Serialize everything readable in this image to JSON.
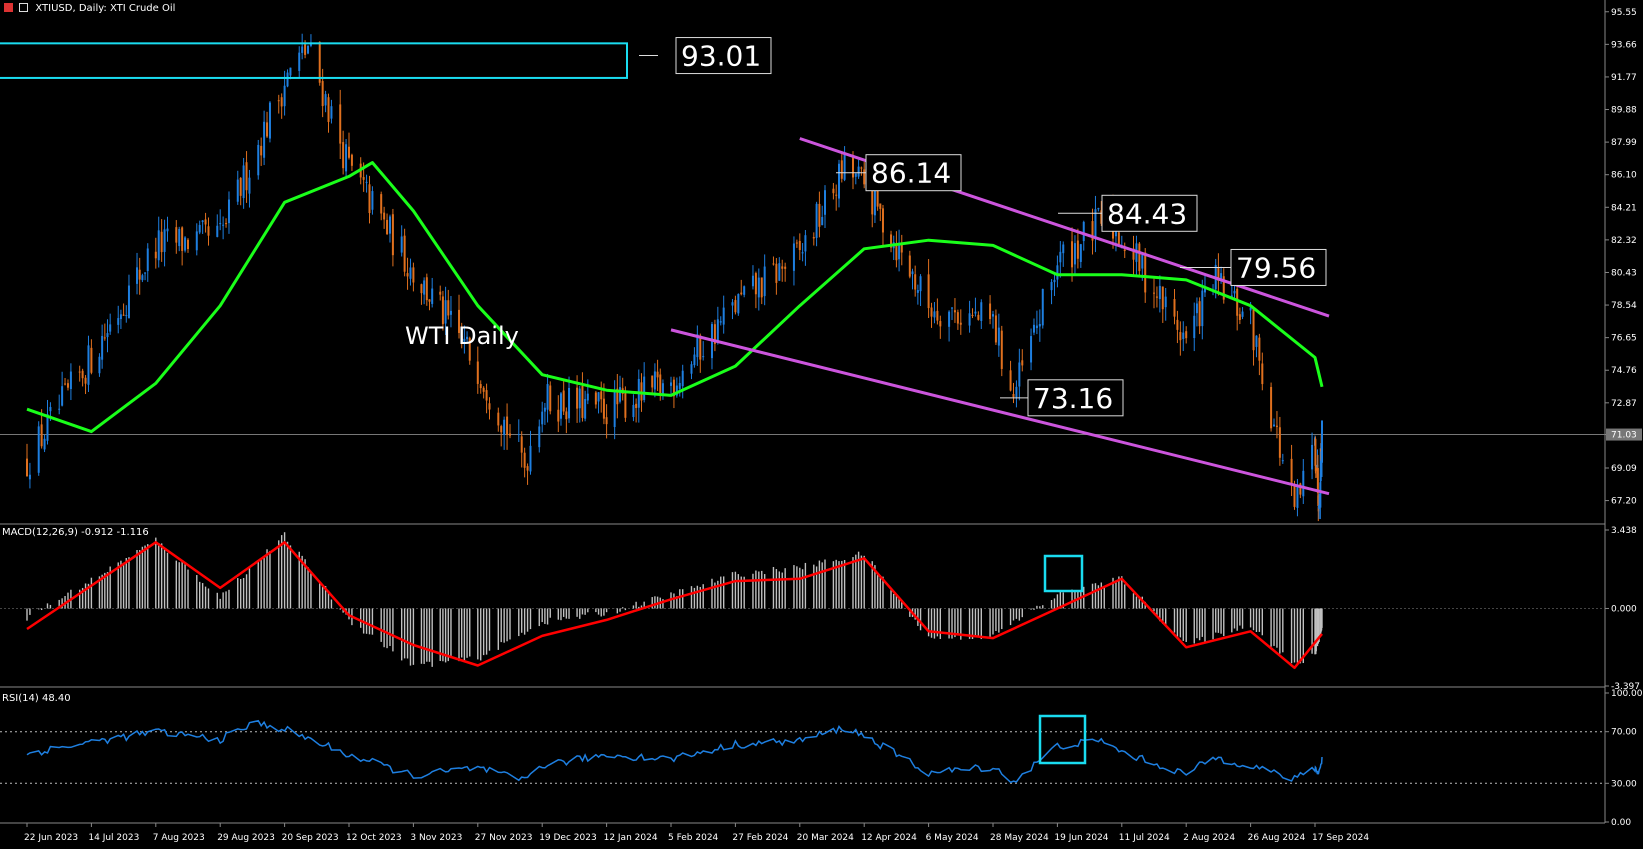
{
  "header": {
    "symbol_title": "XTIUSD, Daily:  XTI Crude Oil",
    "macd_label": "MACD(12,26,9) -0.912 -1.116",
    "rsi_label": "RSI(14) 48.40",
    "watermark": "WTI Daily"
  },
  "colors": {
    "background": "#000000",
    "bull_candle": "#1e7fe0",
    "bear_candle": "#e0701e",
    "moving_average": "#1aff1a",
    "channel": "#cc55dd",
    "callout_box": "#1adcf0",
    "macd_signal": "#ff0000",
    "macd_hist": "#c0c0c0",
    "rsi_line": "#1e7fe0",
    "grid": "#888888"
  },
  "price_axis": {
    "ticks": [
      "95.55",
      "93.66",
      "91.77",
      "89.88",
      "87.99",
      "86.10",
      "84.21",
      "82.32",
      "80.43",
      "78.54",
      "76.65",
      "74.76",
      "72.87",
      "71.03",
      "69.09",
      "67.20"
    ],
    "current_price": "71.03"
  },
  "macd_axis": {
    "ticks": [
      "3.438",
      "0.000",
      "-3.397"
    ]
  },
  "rsi_axis": {
    "ticks": [
      "100.00",
      "70.00",
      "30.00",
      "0.00"
    ]
  },
  "date_axis": {
    "labels": [
      "22 Jun 2023",
      "14 Jul 2023",
      "7 Aug 2023",
      "29 Aug 2023",
      "20 Sep 2023",
      "12 Oct 2023",
      "3 Nov 2023",
      "27 Nov 2023",
      "19 Dec 2023",
      "12 Jan 2024",
      "5 Feb 2024",
      "27 Feb 2024",
      "20 Mar 2024",
      "12 Apr 2024",
      "6 May 2024",
      "28 May 2024",
      "19 Jun 2024",
      "11 Jul 2024",
      "2 Aug 2024",
      "26 Aug 2024",
      "17 Sep 2024"
    ]
  },
  "callouts": [
    "93.01",
    "86.14",
    "84.43",
    "79.56",
    "73.16"
  ],
  "chart_data": {
    "type": "candlestick",
    "title": "XTIUSD, Daily:  XTI Crude Oil",
    "y_range": [
      65.9,
      96.0
    ],
    "price_path": [
      {
        "date": "22 Jun 2023",
        "close": 69.5
      },
      {
        "date": "14 Jul 2023",
        "close": 75.5
      },
      {
        "date": "7 Aug 2023",
        "close": 82.0
      },
      {
        "date": "29 Aug 2023",
        "close": 82.5
      },
      {
        "date": "20 Sep 2023",
        "close": 91.5
      },
      {
        "date": "28 Sep 2023",
        "close": 93.5
      },
      {
        "date": "12 Oct 2023",
        "close": 86.5
      },
      {
        "date": "3 Nov 2023",
        "close": 80.5
      },
      {
        "date": "27 Nov 2023",
        "close": 75.0
      },
      {
        "date": "13 Dec 2023",
        "close": 69.3
      },
      {
        "date": "19 Dec 2023",
        "close": 73.0
      },
      {
        "date": "12 Jan 2024",
        "close": 72.5
      },
      {
        "date": "5 Feb 2024",
        "close": 74.0
      },
      {
        "date": "27 Feb 2024",
        "close": 78.5
      },
      {
        "date": "20 Mar 2024",
        "close": 81.5
      },
      {
        "date": "5 Apr 2024",
        "close": 86.5
      },
      {
        "date": "12 Apr 2024",
        "close": 85.5
      },
      {
        "date": "6 May 2024",
        "close": 78.5
      },
      {
        "date": "28 May 2024",
        "close": 77.5
      },
      {
        "date": "4 Jun 2024",
        "close": 73.2
      },
      {
        "date": "19 Jun 2024",
        "close": 81.0
      },
      {
        "date": "5 Jul 2024",
        "close": 83.5
      },
      {
        "date": "11 Jul 2024",
        "close": 82.5
      },
      {
        "date": "2 Aug 2024",
        "close": 76.5
      },
      {
        "date": "12 Aug 2024",
        "close": 80.0
      },
      {
        "date": "26 Aug 2024",
        "close": 77.5
      },
      {
        "date": "10 Sep 2024",
        "close": 66.5
      },
      {
        "date": "17 Sep 2024",
        "close": 70.5
      },
      {
        "date": "26 Sep 2024",
        "close": 67.5
      },
      {
        "date": "4 Oct 2024",
        "close": 71.03
      }
    ],
    "moving_average": [
      {
        "date": "22 Jun 2023",
        "value": 72.5
      },
      {
        "date": "14 Jul 2023",
        "value": 71.2
      },
      {
        "date": "7 Aug 2023",
        "value": 74.0
      },
      {
        "date": "29 Aug 2023",
        "value": 78.5
      },
      {
        "date": "20 Sep 2023",
        "value": 84.5
      },
      {
        "date": "12 Oct 2023",
        "value": 86.0
      },
      {
        "date": "20 Oct 2023",
        "value": 86.8
      },
      {
        "date": "3 Nov 2023",
        "value": 84.0
      },
      {
        "date": "27 Nov 2023",
        "value": 78.5
      },
      {
        "date": "19 Dec 2023",
        "value": 74.5
      },
      {
        "date": "12 Jan 2024",
        "value": 73.6
      },
      {
        "date": "5 Feb 2024",
        "value": 73.3
      },
      {
        "date": "27 Feb 2024",
        "value": 75.0
      },
      {
        "date": "20 Mar 2024",
        "value": 78.5
      },
      {
        "date": "12 Apr 2024",
        "value": 81.8
      },
      {
        "date": "6 May 2024",
        "value": 82.3
      },
      {
        "date": "28 May 2024",
        "value": 82.0
      },
      {
        "date": "19 Jun 2024",
        "value": 80.3
      },
      {
        "date": "11 Jul 2024",
        "value": 80.3
      },
      {
        "date": "2 Aug 2024",
        "value": 80.0
      },
      {
        "date": "26 Aug 2024",
        "value": 78.5
      },
      {
        "date": "17 Sep 2024",
        "value": 75.5
      },
      {
        "date": "4 Oct 2024",
        "value": 73.8
      }
    ],
    "channel_upper": [
      {
        "date": "20 Mar 2024",
        "value": 88.2
      },
      {
        "date": "21 Oct 2024",
        "value": 77.9
      }
    ],
    "channel_lower": [
      {
        "date": "5 Feb 2024",
        "value": 77.1
      },
      {
        "date": "21 Oct 2024",
        "value": 67.6
      }
    ],
    "macd_signal": [
      {
        "date": "22 Jun 2023",
        "value": -0.9
      },
      {
        "date": "7 Aug 2023",
        "value": 2.9
      },
      {
        "date": "29 Aug 2023",
        "value": 0.9
      },
      {
        "date": "20 Sep 2023",
        "value": 2.9
      },
      {
        "date": "12 Oct 2023",
        "value": -0.3
      },
      {
        "date": "3 Nov 2023",
        "value": -1.6
      },
      {
        "date": "27 Nov 2023",
        "value": -2.5
      },
      {
        "date": "19 Dec 2023",
        "value": -1.2
      },
      {
        "date": "12 Jan 2024",
        "value": -0.5
      },
      {
        "date": "5 Feb 2024",
        "value": 0.4
      },
      {
        "date": "27 Feb 2024",
        "value": 1.2
      },
      {
        "date": "20 Mar 2024",
        "value": 1.3
      },
      {
        "date": "12 Apr 2024",
        "value": 2.2
      },
      {
        "date": "6 May 2024",
        "value": -1.0
      },
      {
        "date": "28 May 2024",
        "value": -1.3
      },
      {
        "date": "19 Jun 2024",
        "value": 0.0
      },
      {
        "date": "11 Jul 2024",
        "value": 1.3
      },
      {
        "date": "2 Aug 2024",
        "value": -1.7
      },
      {
        "date": "26 Aug 2024",
        "value": -1.0
      },
      {
        "date": "10 Sep 2024",
        "value": -2.6
      },
      {
        "date": "4 Oct 2024",
        "value": -1.116
      }
    ],
    "macd_hist": [
      {
        "date": "22 Jun 2023",
        "value": -0.4
      },
      {
        "date": "7 Aug 2023",
        "value": 3.0
      },
      {
        "date": "29 Aug 2023",
        "value": 0.5
      },
      {
        "date": "20 Sep 2023",
        "value": 3.2
      },
      {
        "date": "12 Oct 2023",
        "value": -0.5
      },
      {
        "date": "3 Nov 2023",
        "value": -2.5
      },
      {
        "date": "27 Nov 2023",
        "value": -2.2
      },
      {
        "date": "19 Dec 2023",
        "value": -0.6
      },
      {
        "date": "12 Jan 2024",
        "value": -0.2
      },
      {
        "date": "5 Feb 2024",
        "value": 0.6
      },
      {
        "date": "27 Feb 2024",
        "value": 1.5
      },
      {
        "date": "20 Mar 2024",
        "value": 1.8
      },
      {
        "date": "12 Apr 2024",
        "value": 2.4
      },
      {
        "date": "6 May 2024",
        "value": -1.3
      },
      {
        "date": "28 May 2024",
        "value": -1.2
      },
      {
        "date": "19 Jun 2024",
        "value": 0.6
      },
      {
        "date": "11 Jul 2024",
        "value": 1.3
      },
      {
        "date": "2 Aug 2024",
        "value": -1.6
      },
      {
        "date": "26 Aug 2024",
        "value": -0.7
      },
      {
        "date": "10 Sep 2024",
        "value": -2.5
      },
      {
        "date": "4 Oct 2024",
        "value": -0.912
      }
    ],
    "rsi": [
      {
        "date": "22 Jun 2023",
        "value": 53
      },
      {
        "date": "14 Jul 2023",
        "value": 62
      },
      {
        "date": "7 Aug 2023",
        "value": 70
      },
      {
        "date": "29 Aug 2023",
        "value": 64
      },
      {
        "date": "10 Sep 2023",
        "value": 77
      },
      {
        "date": "20 Sep 2023",
        "value": 72
      },
      {
        "date": "12 Oct 2023",
        "value": 52
      },
      {
        "date": "3 Nov 2023",
        "value": 36
      },
      {
        "date": "27 Nov 2023",
        "value": 42
      },
      {
        "date": "12 Dec 2023",
        "value": 32
      },
      {
        "date": "19 Dec 2023",
        "value": 44
      },
      {
        "date": "12 Jan 2024",
        "value": 52
      },
      {
        "date": "5 Feb 2024",
        "value": 49
      },
      {
        "date": "27 Feb 2024",
        "value": 60
      },
      {
        "date": "20 Mar 2024",
        "value": 63
      },
      {
        "date": "5 Apr 2024",
        "value": 73
      },
      {
        "date": "12 Apr 2024",
        "value": 67
      },
      {
        "date": "6 May 2024",
        "value": 38
      },
      {
        "date": "28 May 2024",
        "value": 43
      },
      {
        "date": "4 Jun 2024",
        "value": 31
      },
      {
        "date": "19 Jun 2024",
        "value": 59
      },
      {
        "date": "5 Jul 2024",
        "value": 63
      },
      {
        "date": "11 Jul 2024",
        "value": 54
      },
      {
        "date": "2 Aug 2024",
        "value": 37
      },
      {
        "date": "12 Aug 2024",
        "value": 50
      },
      {
        "date": "26 Aug 2024",
        "value": 44
      },
      {
        "date": "10 Sep 2024",
        "value": 33
      },
      {
        "date": "17 Sep 2024",
        "value": 42
      },
      {
        "date": "26 Sep 2024",
        "value": 38
      },
      {
        "date": "4 Oct 2024",
        "value": 48.4
      }
    ],
    "rsi_levels": [
      70,
      30
    ]
  }
}
